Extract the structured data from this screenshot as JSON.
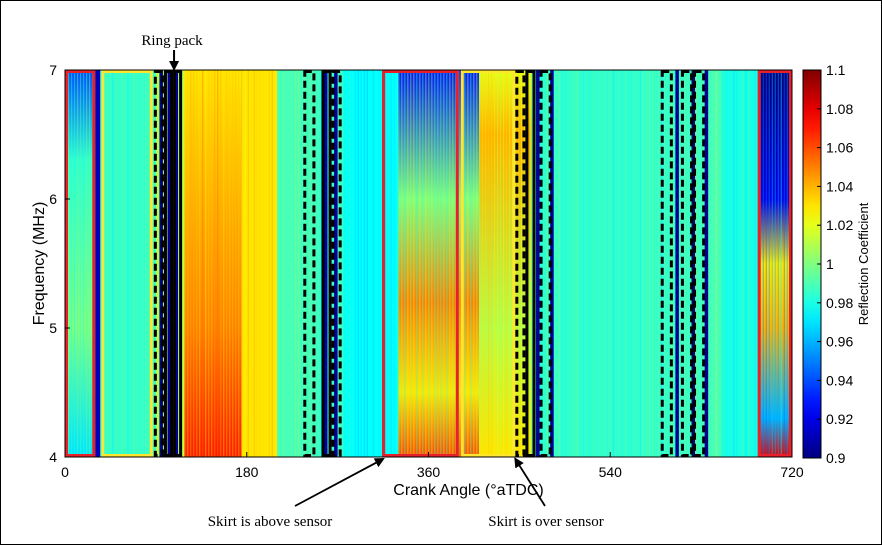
{
  "chart_data": {
    "type": "heatmap",
    "xlabel": "Crank Angle (°aTDC)",
    "ylabel": "Frequency (MHz)",
    "colorbar_label": "Reflection Coefficient",
    "xlim": [
      0,
      720
    ],
    "ylim": [
      4,
      7
    ],
    "xticks": [
      "0",
      "180",
      "360",
      "540",
      "720"
    ],
    "yticks": [
      "4",
      "5",
      "6",
      "7"
    ],
    "colorbar": {
      "range": [
        0.9,
        1.1
      ],
      "ticks": [
        "1.1",
        "1.08",
        "1.06",
        "1.04",
        "1.02",
        "1",
        "0.98",
        "0.96",
        "0.94",
        "0.92",
        "0.9"
      ],
      "colormap": "jet"
    },
    "background_reflection": 0.98,
    "regions": [
      {
        "start": 0,
        "end": 30,
        "base": 0.985,
        "profile": [
          [
            4,
            0.97
          ],
          [
            5,
            1.0
          ],
          [
            6.3,
            0.985
          ],
          [
            7,
            0.94
          ]
        ]
      },
      {
        "start": 30,
        "end": 35,
        "base": 0.91
      },
      {
        "start": 35,
        "end": 90,
        "base": 0.985
      },
      {
        "start": 90,
        "end": 118,
        "base": 1.01,
        "stripes": [
          95,
          103,
          110
        ]
      },
      {
        "start": 118,
        "end": 175,
        "base": 1.04,
        "profile": [
          [
            4,
            1.07
          ],
          [
            5,
            1.05
          ],
          [
            6,
            1.04
          ],
          [
            7,
            1.03
          ]
        ]
      },
      {
        "start": 175,
        "end": 210,
        "base": 1.03
      },
      {
        "start": 210,
        "end": 250,
        "base": 0.99
      },
      {
        "start": 250,
        "end": 275,
        "base": 0.985,
        "stripes": [
          258,
          268
        ]
      },
      {
        "start": 275,
        "end": 330,
        "base": 0.975
      },
      {
        "start": 330,
        "end": 410,
        "base": 1.0,
        "profile": [
          [
            4,
            1.06
          ],
          [
            4.5,
            1.03
          ],
          [
            5.2,
            1.05
          ],
          [
            6,
            1.0
          ],
          [
            7,
            0.93
          ]
        ]
      },
      {
        "start": 410,
        "end": 462,
        "base": 1.02,
        "profile": [
          [
            4,
            1.03
          ],
          [
            5,
            1.01
          ],
          [
            6.5,
            1.04
          ],
          [
            7,
            1.02
          ]
        ]
      },
      {
        "start": 462,
        "end": 495,
        "base": 0.985,
        "stripes": [
          468,
          482
        ]
      },
      {
        "start": 495,
        "end": 600,
        "base": 0.985
      },
      {
        "start": 600,
        "end": 650,
        "base": 0.99,
        "stripes": [
          606,
          622,
          635
        ]
      },
      {
        "start": 650,
        "end": 688,
        "base": 0.98
      },
      {
        "start": 688,
        "end": 720,
        "base": 0.96,
        "profile": [
          [
            4,
            1.08
          ],
          [
            4.3,
            0.96
          ],
          [
            5,
            1.04
          ],
          [
            5.5,
            1.03
          ],
          [
            6,
            0.92
          ],
          [
            7,
            0.9
          ]
        ]
      }
    ],
    "boxes": [
      {
        "x0": 0,
        "x1": 30,
        "color": "#e8202a",
        "style": "solid"
      },
      {
        "x0": 36,
        "x1": 87,
        "color": "#ffe52e",
        "style": "solid"
      },
      {
        "x0": 88,
        "x1": 98,
        "color": "#000000",
        "style": "dashed"
      },
      {
        "x0": 98,
        "x1": 107,
        "color": "#000000",
        "style": "solid"
      },
      {
        "x0": 107,
        "x1": 116,
        "color": "#000000",
        "style": "solid"
      },
      {
        "x0": 236,
        "x1": 248,
        "color": "#000000",
        "style": "dashed"
      },
      {
        "x0": 254,
        "x1": 264,
        "color": "#000000",
        "style": "solid"
      },
      {
        "x0": 264,
        "x1": 274,
        "color": "#000000",
        "style": "dashed"
      },
      {
        "x0": 314,
        "x1": 390,
        "color": "#e8202a",
        "style": "solid"
      },
      {
        "x0": 392,
        "x1": 446,
        "color": "#ffe52e",
        "style": "solid"
      },
      {
        "x0": 446,
        "x1": 456,
        "color": "#000000",
        "style": "dashed"
      },
      {
        "x0": 456,
        "x1": 466,
        "color": "#000000",
        "style": "solid"
      },
      {
        "x0": 470,
        "x1": 482,
        "color": "#000000",
        "style": "dashed"
      },
      {
        "x0": 590,
        "x1": 602,
        "color": "#000000",
        "style": "dashed"
      },
      {
        "x0": 610,
        "x1": 622,
        "color": "#000000",
        "style": "dashed"
      },
      {
        "x0": 622,
        "x1": 634,
        "color": "#000000",
        "style": "dashed"
      },
      {
        "x0": 686,
        "x1": 720,
        "color": "#e8202a",
        "style": "solid"
      }
    ],
    "annotations": [
      {
        "text": "Ring pack",
        "target_x": 108,
        "target_y": 7.0
      },
      {
        "text": "Skirt is above sensor",
        "target_x": 315,
        "target_y": 4.0
      },
      {
        "text": "Skirt is over sensor",
        "target_x": 446,
        "target_y": 4.0
      }
    ]
  }
}
